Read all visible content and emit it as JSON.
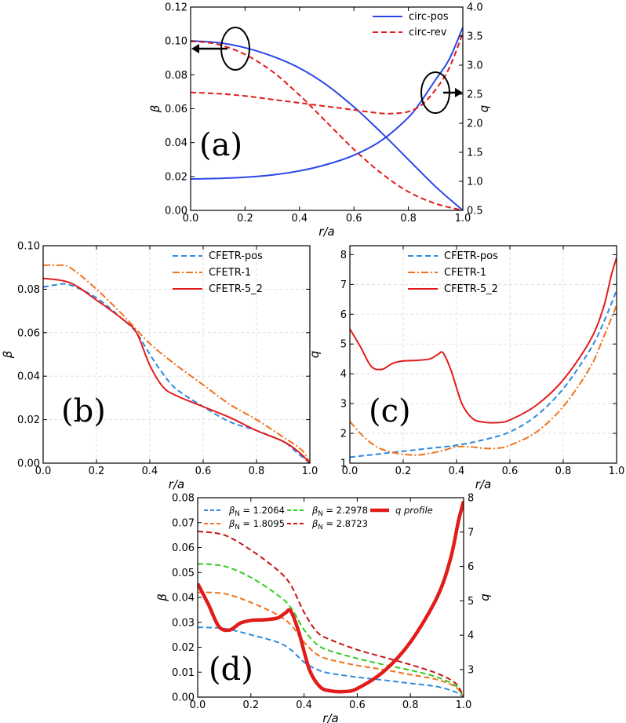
{
  "figure": {
    "colors": {
      "blue": "#2a46e8",
      "red": "#e21b1b",
      "orange": "#f0731c",
      "lightblue": "#2f8ae0",
      "green": "#33cc22",
      "darkred": "#c81414"
    }
  },
  "chart_data": [
    {
      "id": "a",
      "type": "line",
      "panel_label": "(a)",
      "xlabel": "r/a",
      "ylabel": "β",
      "ylabel_right": "q",
      "xlim": [
        0,
        1
      ],
      "ylim": [
        0,
        0.12
      ],
      "ylim_right": [
        0.5,
        4.0
      ],
      "xticks": [
        0.0,
        0.2,
        0.4,
        0.6,
        0.8,
        1.0
      ],
      "xtick_labels": [
        "0.0",
        "0.2",
        "0.4",
        "0.6",
        "0.8",
        "1.0"
      ],
      "yticks": [
        0.0,
        0.02,
        0.04,
        0.06,
        0.08,
        0.1,
        0.12
      ],
      "ytick_labels": [
        "0.00",
        "0.02",
        "0.04",
        "0.06",
        "0.08",
        "0.10",
        "0.12"
      ],
      "yticks_right": [
        0.5,
        1.0,
        1.5,
        2.0,
        2.5,
        3.0,
        3.5,
        4.0
      ],
      "ytick_labels_right": [
        "0.5",
        "1.0",
        "1.5",
        "2.0",
        "2.5",
        "3.0",
        "3.5",
        "4.0"
      ],
      "grid": false,
      "legend_position": "top-right",
      "annotations": [
        "ellipse with left arrow marks beta axis",
        "ellipse with right arrow marks q axis"
      ],
      "series": [
        {
          "name": "circ-pos",
          "axis": "left",
          "color": "#2a46e8",
          "dash": "solid",
          "legend": true,
          "x": [
            0,
            0.1,
            0.2,
            0.3,
            0.4,
            0.5,
            0.6,
            0.7,
            0.8,
            0.9,
            1.0
          ],
          "y": [
            0.1,
            0.099,
            0.096,
            0.091,
            0.084,
            0.074,
            0.061,
            0.046,
            0.03,
            0.014,
            0.0
          ]
        },
        {
          "name": "circ-rev",
          "axis": "left",
          "color": "#e21b1b",
          "dash": "dashed",
          "legend": true,
          "x": [
            0,
            0.1,
            0.2,
            0.3,
            0.4,
            0.5,
            0.6,
            0.7,
            0.8,
            0.9,
            1.0
          ],
          "y": [
            0.1,
            0.098,
            0.092,
            0.082,
            0.068,
            0.052,
            0.036,
            0.022,
            0.011,
            0.004,
            0.0
          ]
        },
        {
          "name": "circ-pos q",
          "axis": "right",
          "color": "#2a46e8",
          "dash": "solid",
          "legend": false,
          "x": [
            0,
            0.1,
            0.2,
            0.3,
            0.4,
            0.5,
            0.6,
            0.7,
            0.8,
            0.85,
            0.9,
            0.95,
            1.0
          ],
          "y": [
            1.04,
            1.05,
            1.07,
            1.11,
            1.18,
            1.29,
            1.45,
            1.7,
            2.1,
            2.4,
            2.75,
            3.1,
            3.65
          ]
        },
        {
          "name": "circ-rev q",
          "axis": "right",
          "color": "#e21b1b",
          "dash": "dashed",
          "legend": false,
          "x": [
            0,
            0.1,
            0.2,
            0.3,
            0.4,
            0.5,
            0.6,
            0.7,
            0.75,
            0.8,
            0.85,
            0.9,
            0.95,
            1.0
          ],
          "y": [
            2.53,
            2.51,
            2.47,
            2.41,
            2.35,
            2.29,
            2.23,
            2.17,
            2.17,
            2.2,
            2.32,
            2.58,
            2.95,
            3.55
          ]
        }
      ]
    },
    {
      "id": "b",
      "type": "line",
      "panel_label": "(b)",
      "xlabel": "r/a",
      "ylabel": "β",
      "xlim": [
        0,
        1
      ],
      "ylim": [
        0,
        0.1
      ],
      "xticks": [
        0.0,
        0.2,
        0.4,
        0.6,
        0.8,
        1.0
      ],
      "xtick_labels": [
        "0.0",
        "0.2",
        "0.4",
        "0.6",
        "0.8",
        "1.0"
      ],
      "yticks": [
        0.0,
        0.02,
        0.04,
        0.06,
        0.08,
        0.1
      ],
      "ytick_labels": [
        "0.00",
        "0.02",
        "0.04",
        "0.06",
        "0.08",
        "0.10"
      ],
      "grid": true,
      "legend_position": "top-right",
      "series": [
        {
          "name": "CFETR-pos",
          "color": "#2f8ae0",
          "dash": "dashed",
          "x": [
            0,
            0.05,
            0.1,
            0.2,
            0.3,
            0.35,
            0.4,
            0.45,
            0.5,
            0.6,
            0.7,
            0.8,
            0.9,
            0.95,
            1.0
          ],
          "y": [
            0.081,
            0.082,
            0.082,
            0.076,
            0.066,
            0.06,
            0.05,
            0.041,
            0.034,
            0.026,
            0.019,
            0.015,
            0.01,
            0.005,
            0.0
          ]
        },
        {
          "name": "CFETR-1",
          "color": "#f0731c",
          "dash": "dashdot",
          "x": [
            0,
            0.05,
            0.1,
            0.2,
            0.3,
            0.4,
            0.5,
            0.6,
            0.7,
            0.8,
            0.9,
            0.97,
            1.0
          ],
          "y": [
            0.091,
            0.091,
            0.09,
            0.08,
            0.068,
            0.055,
            0.045,
            0.036,
            0.027,
            0.02,
            0.012,
            0.006,
            0.0
          ]
        },
        {
          "name": "CFETR-5_2",
          "color": "#e21b1b",
          "dash": "solid",
          "x": [
            0,
            0.1,
            0.2,
            0.3,
            0.35,
            0.4,
            0.45,
            0.5,
            0.6,
            0.7,
            0.8,
            0.9,
            0.96,
            1.0
          ],
          "y": [
            0.085,
            0.083,
            0.075,
            0.066,
            0.06,
            0.045,
            0.035,
            0.031,
            0.026,
            0.021,
            0.015,
            0.01,
            0.005,
            0.0
          ]
        }
      ]
    },
    {
      "id": "c",
      "type": "line",
      "panel_label": "(c)",
      "xlabel": "r/a",
      "ylabel": "q",
      "xlim": [
        0,
        1
      ],
      "ylim": [
        1,
        8.3
      ],
      "xticks": [
        0.0,
        0.2,
        0.4,
        0.6,
        0.8,
        1.0
      ],
      "xtick_labels": [
        "0.0",
        "0.2",
        "0.4",
        "0.6",
        "0.8",
        "1.0"
      ],
      "yticks": [
        1,
        2,
        3,
        4,
        5,
        6,
        7,
        8
      ],
      "ytick_labels": [
        "1",
        "2",
        "3",
        "4",
        "5",
        "6",
        "7",
        "8"
      ],
      "grid": true,
      "legend_position": "top-left",
      "series": [
        {
          "name": "CFETR-pos",
          "color": "#2f8ae0",
          "dash": "dashed",
          "x": [
            0,
            0.05,
            0.1,
            0.2,
            0.3,
            0.4,
            0.5,
            0.6,
            0.7,
            0.8,
            0.9,
            0.95,
            1.0
          ],
          "y": [
            1.2,
            1.25,
            1.3,
            1.4,
            1.5,
            1.6,
            1.78,
            2.05,
            2.6,
            3.5,
            4.8,
            5.7,
            6.8
          ]
        },
        {
          "name": "CFETR-1",
          "color": "#f0731c",
          "dash": "dashdot",
          "x": [
            0,
            0.05,
            0.1,
            0.15,
            0.2,
            0.25,
            0.3,
            0.35,
            0.4,
            0.45,
            0.5,
            0.55,
            0.6,
            0.7,
            0.8,
            0.9,
            0.95,
            1.0
          ],
          "y": [
            2.4,
            1.9,
            1.55,
            1.38,
            1.3,
            1.27,
            1.33,
            1.43,
            1.55,
            1.55,
            1.5,
            1.5,
            1.6,
            2.05,
            2.9,
            4.2,
            5.2,
            6.3
          ]
        },
        {
          "name": "CFETR-5_2",
          "color": "#e21b1b",
          "dash": "solid",
          "x": [
            0,
            0.04,
            0.08,
            0.12,
            0.16,
            0.2,
            0.25,
            0.3,
            0.33,
            0.35,
            0.38,
            0.42,
            0.46,
            0.5,
            0.55,
            0.6,
            0.7,
            0.8,
            0.9,
            0.95,
            0.98,
            1.0
          ],
          "y": [
            5.5,
            4.9,
            4.25,
            4.15,
            4.35,
            4.43,
            4.45,
            4.5,
            4.65,
            4.7,
            4.1,
            3.0,
            2.5,
            2.38,
            2.36,
            2.45,
            2.95,
            3.8,
            5.1,
            6.2,
            7.3,
            7.9
          ]
        }
      ]
    },
    {
      "id": "d",
      "type": "line",
      "panel_label": "(d)",
      "xlabel": "r/a",
      "ylabel": "β",
      "ylabel_right": "q",
      "xlim": [
        0,
        1
      ],
      "ylim": [
        0,
        0.08
      ],
      "ylim_right": [
        2.2,
        8.0
      ],
      "xticks": [
        0.0,
        0.2,
        0.4,
        0.6,
        0.8,
        1.0
      ],
      "xtick_labels": [
        "0.0",
        "0.2",
        "0.4",
        "0.6",
        "0.8",
        "1.0"
      ],
      "yticks": [
        0.0,
        0.01,
        0.02,
        0.03,
        0.04,
        0.05,
        0.06,
        0.07,
        0.08
      ],
      "ytick_labels": [
        "0.00",
        "0.01",
        "0.02",
        "0.03",
        "0.04",
        "0.05",
        "0.06",
        "0.07",
        "0.08"
      ],
      "yticks_right": [
        3,
        4,
        5,
        6,
        7,
        8
      ],
      "ytick_labels_right": [
        "3",
        "4",
        "5",
        "6",
        "7",
        "8"
      ],
      "grid": false,
      "legend_position": "top",
      "series": [
        {
          "name": "βN = 1.2064",
          "legend_main": "β",
          "legend_sub": "N",
          "legend_val": " = 1.2064",
          "axis": "left",
          "color": "#2f8ae0",
          "dash": "dashed",
          "x": [
            0,
            0.1,
            0.2,
            0.3,
            0.35,
            0.4,
            0.45,
            0.5,
            0.6,
            0.7,
            0.8,
            0.9,
            0.97,
            1.0
          ],
          "y": [
            0.028,
            0.0275,
            0.025,
            0.022,
            0.019,
            0.014,
            0.011,
            0.0095,
            0.008,
            0.0068,
            0.0055,
            0.0042,
            0.002,
            0.0
          ]
        },
        {
          "name": "βN = 1.8095",
          "legend_main": "β",
          "legend_sub": "N",
          "legend_val": " = 1.8095",
          "axis": "left",
          "color": "#f0731c",
          "dash": "dashed",
          "x": [
            0,
            0.1,
            0.2,
            0.3,
            0.35,
            0.4,
            0.45,
            0.5,
            0.6,
            0.7,
            0.8,
            0.9,
            0.97,
            1.0
          ],
          "y": [
            0.042,
            0.0415,
            0.038,
            0.033,
            0.029,
            0.022,
            0.017,
            0.015,
            0.0127,
            0.011,
            0.009,
            0.007,
            0.004,
            0.0
          ]
        },
        {
          "name": "βN = 2.2978",
          "legend_main": "β",
          "legend_sub": "N",
          "legend_val": " = 2.2978",
          "axis": "left",
          "color": "#33cc22",
          "dash": "dashed",
          "x": [
            0,
            0.1,
            0.2,
            0.3,
            0.35,
            0.4,
            0.45,
            0.5,
            0.6,
            0.7,
            0.8,
            0.9,
            0.97,
            1.0
          ],
          "y": [
            0.0535,
            0.0525,
            0.048,
            0.041,
            0.036,
            0.027,
            0.021,
            0.0185,
            0.0155,
            0.013,
            0.0108,
            0.008,
            0.0045,
            0.0
          ]
        },
        {
          "name": "βN = 2.8723",
          "legend_main": "β",
          "legend_sub": "N",
          "legend_val": " = 2.8723",
          "axis": "left",
          "color": "#c81414",
          "dash": "dashed",
          "x": [
            0,
            0.1,
            0.2,
            0.3,
            0.35,
            0.4,
            0.45,
            0.5,
            0.6,
            0.7,
            0.8,
            0.9,
            0.97,
            1.0
          ],
          "y": [
            0.0665,
            0.065,
            0.059,
            0.051,
            0.045,
            0.034,
            0.026,
            0.023,
            0.019,
            0.016,
            0.013,
            0.0095,
            0.0055,
            0.0
          ]
        },
        {
          "name": "q profile",
          "legend_main": "",
          "legend_sub": "",
          "legend_val": "q profile",
          "axis": "right",
          "color": "#e21b1b",
          "dash": "thick",
          "x": [
            0,
            0.04,
            0.08,
            0.12,
            0.16,
            0.2,
            0.25,
            0.3,
            0.33,
            0.35,
            0.38,
            0.42,
            0.46,
            0.5,
            0.55,
            0.6,
            0.7,
            0.8,
            0.9,
            0.95,
            0.98,
            1.0
          ],
          "y": [
            5.5,
            4.9,
            4.25,
            4.15,
            4.35,
            4.43,
            4.45,
            4.5,
            4.65,
            4.7,
            4.1,
            3.0,
            2.5,
            2.38,
            2.36,
            2.45,
            2.95,
            3.8,
            5.1,
            6.2,
            7.3,
            7.9
          ]
        }
      ]
    }
  ]
}
